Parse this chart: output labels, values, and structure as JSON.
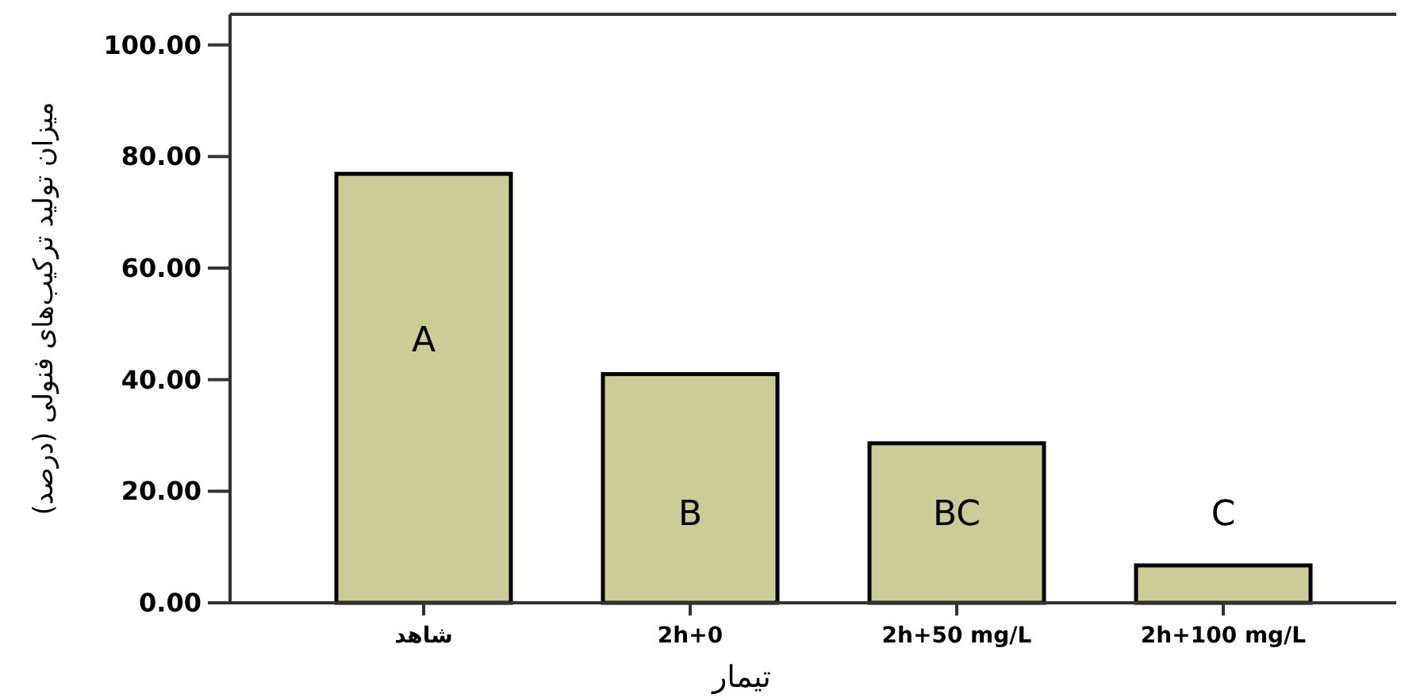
{
  "chart_data": {
    "type": "bar",
    "categories": [
      "شاهد",
      "2h+0",
      "2h+50 mg/L",
      "2h+100 mg/L"
    ],
    "values": [
      76.9,
      41.0,
      28.6,
      6.7
    ],
    "color": "#cccc99",
    "xlabel": "تیمار",
    "ylabel": "میزان تولید ترکیب‌های فنولی (درصد)",
    "ylim": [
      0,
      105.5
    ],
    "yticks": [
      {
        "value": 0,
        "label": "0.00"
      },
      {
        "value": 20,
        "label": "20.00"
      },
      {
        "value": 40,
        "label": "40.00"
      },
      {
        "value": 60,
        "label": "60.00"
      },
      {
        "value": 80,
        "label": "80.00"
      },
      {
        "value": 100,
        "label": "100.00"
      }
    ],
    "annotations": [
      "A",
      "B",
      "BC",
      "C"
    ]
  }
}
